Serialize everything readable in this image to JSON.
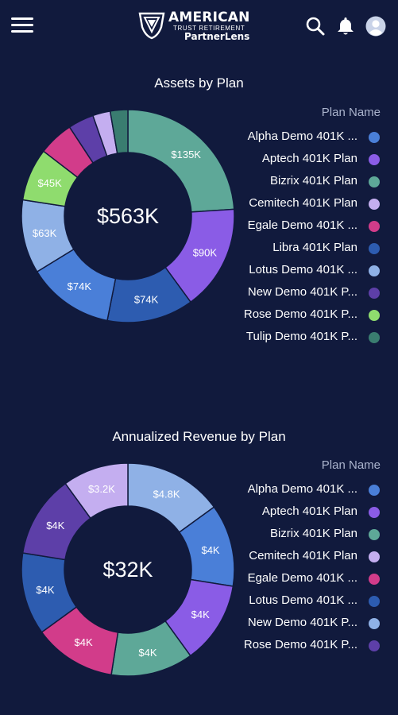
{
  "header": {
    "logo_main": "AMERICAN",
    "logo_sub": "TRUST RETIREMENT",
    "logo_product": "PartnerLens",
    "icons": [
      "menu-icon",
      "search-icon",
      "bell-icon",
      "user-icon"
    ]
  },
  "chart_data": [
    {
      "type": "pie",
      "title": "Assets by Plan",
      "center_label": "$563K",
      "legend_title": "Plan Name",
      "categories": [
        "Alpha Demo 401K ...",
        "Aptech 401K Plan",
        "Bizrix 401K Plan",
        "Cemitech 401K Plan",
        "Egale Demo 401K ...",
        "Libra 401K Plan",
        "Lotus Demo 401K ...",
        "New Demo 401K P...",
        "Rose Demo 401K P...",
        "Tulip Demo 401K P..."
      ],
      "legend_colors": [
        "#4a7fd8",
        "#8a5ce6",
        "#5ea898",
        "#c4aef0",
        "#d23c8a",
        "#2d5cb0",
        "#8fb1e6",
        "#5d3fa8",
        "#8fdc6e",
        "#3a7d70"
      ],
      "slices": [
        {
          "label": "$135K",
          "value": 135,
          "color": "#5ea898"
        },
        {
          "label": "$90K",
          "value": 90,
          "color": "#8a5ce6"
        },
        {
          "label": "$74K",
          "value": 74,
          "color": "#2d5cb0"
        },
        {
          "label": "$74K",
          "value": 74,
          "color": "#4a7fd8"
        },
        {
          "label": "$63K",
          "value": 63,
          "color": "#8fb1e6"
        },
        {
          "label": "$45K",
          "value": 45,
          "color": "#8fdc6e"
        },
        {
          "label": "",
          "value": 30,
          "color": "#d23c8a"
        },
        {
          "label": "",
          "value": 22,
          "color": "#5d3fa8"
        },
        {
          "label": "",
          "value": 15,
          "color": "#c4aef0"
        },
        {
          "label": "",
          "value": 15,
          "color": "#3a7d70"
        }
      ]
    },
    {
      "type": "pie",
      "title": "Annualized Revenue by Plan",
      "center_label": "$32K",
      "legend_title": "Plan Name",
      "categories": [
        "Alpha Demo 401K ...",
        "Aptech 401K Plan",
        "Bizrix 401K Plan",
        "Cemitech 401K Plan",
        "Egale Demo 401K ...",
        "Lotus Demo 401K ...",
        "New Demo 401K P...",
        "Rose Demo 401K P..."
      ],
      "legend_colors": [
        "#4a7fd8",
        "#8a5ce6",
        "#5ea898",
        "#c4aef0",
        "#d23c8a",
        "#2d5cb0",
        "#8fb1e6",
        "#5d3fa8"
      ],
      "slices": [
        {
          "label": "$4.8K",
          "value": 4.8,
          "color": "#8fb1e6"
        },
        {
          "label": "$4K",
          "value": 4,
          "color": "#4a7fd8"
        },
        {
          "label": "$4K",
          "value": 4,
          "color": "#8a5ce6"
        },
        {
          "label": "$4K",
          "value": 4,
          "color": "#5ea898"
        },
        {
          "label": "$4K",
          "value": 4,
          "color": "#d23c8a"
        },
        {
          "label": "$4K",
          "value": 4,
          "color": "#2d5cb0"
        },
        {
          "label": "$4K",
          "value": 4,
          "color": "#5d3fa8"
        },
        {
          "label": "$3.2K",
          "value": 3.2,
          "color": "#c4aef0"
        }
      ]
    }
  ]
}
